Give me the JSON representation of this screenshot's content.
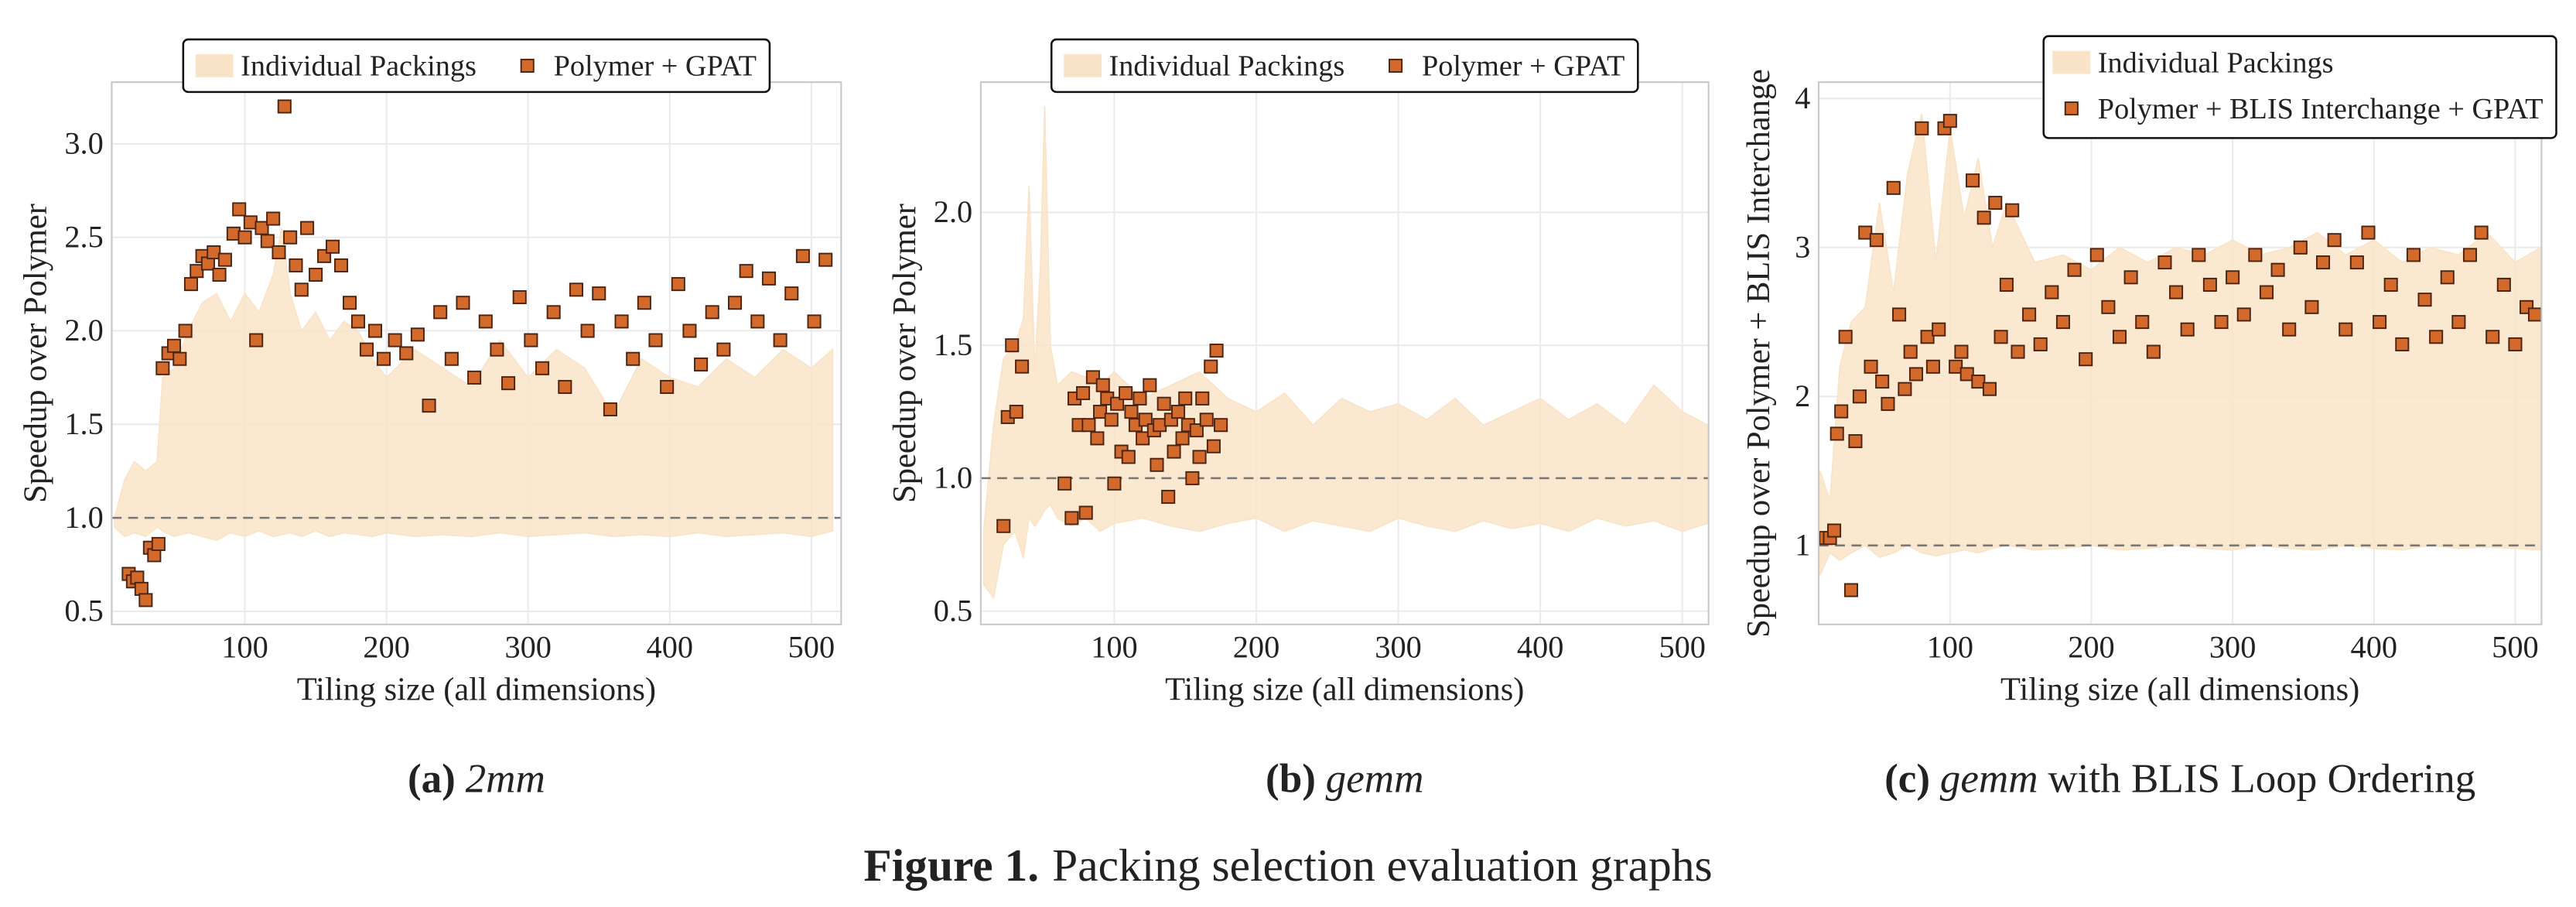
{
  "figure_caption": {
    "label": "Figure 1.",
    "text": "Packing selection evaluation graphs"
  },
  "chart_data": [
    {
      "type": "scatter",
      "caption": {
        "label": "(a)",
        "name": "2mm"
      },
      "xlabel": "Tiling size (all dimensions)",
      "ylabel": "Speedup over Polymer",
      "xlim": [
        6,
        521
      ],
      "ylim": [
        0.43,
        3.33
      ],
      "xticks": [
        100,
        200,
        300,
        400,
        500
      ],
      "yticks": [
        0.5,
        {
          "value": 1,
          "label": "1.0"
        },
        1.5,
        {
          "value": 2,
          "label": "2.0"
        },
        2.5,
        {
          "value": 3,
          "label": "3.0"
        }
      ],
      "grid": true,
      "hline": 1,
      "legend": "upper center",
      "series": [
        {
          "name": "Individual Packings",
          "type": "area",
          "color": "#f9e4c8",
          "x": [
            8,
            15,
            22,
            30,
            38,
            42,
            50,
            60,
            70,
            80,
            90,
            100,
            110,
            120,
            126,
            132,
            140,
            150,
            160,
            170,
            180,
            190,
            200,
            220,
            240,
            260,
            280,
            300,
            320,
            340,
            360,
            380,
            400,
            420,
            440,
            460,
            480,
            500,
            515
          ],
          "upper": [
            1.0,
            1.2,
            1.3,
            1.25,
            1.3,
            1.75,
            1.8,
            2.0,
            2.15,
            2.2,
            2.05,
            2.2,
            2.1,
            2.3,
            2.55,
            2.2,
            2.0,
            2.1,
            1.95,
            2.05,
            2.0,
            1.85,
            1.75,
            1.9,
            1.8,
            1.7,
            1.95,
            1.75,
            1.9,
            1.8,
            1.55,
            1.85,
            1.75,
            1.7,
            1.85,
            1.75,
            1.9,
            1.8,
            1.9
          ],
          "lower": [
            0.95,
            0.9,
            0.92,
            0.9,
            0.95,
            0.93,
            0.9,
            0.92,
            0.9,
            0.88,
            0.92,
            0.9,
            0.93,
            0.9,
            0.91,
            0.92,
            0.9,
            0.93,
            0.9,
            0.92,
            0.91,
            0.9,
            0.92,
            0.9,
            0.91,
            0.9,
            0.92,
            0.9,
            0.91,
            0.92,
            0.9,
            0.91,
            0.9,
            0.92,
            0.9,
            0.91,
            0.92,
            0.9,
            0.93
          ]
        },
        {
          "name": "Polymer + GPAT",
          "type": "scatter",
          "color": "#d4692c",
          "x": [
            18,
            21,
            24,
            27,
            30,
            33,
            36,
            39,
            42,
            46,
            50,
            54,
            58,
            62,
            66,
            70,
            74,
            78,
            82,
            86,
            92,
            96,
            100,
            104,
            108,
            112,
            116,
            120,
            124,
            128,
            132,
            136,
            140,
            144,
            150,
            156,
            162,
            168,
            174,
            180,
            186,
            192,
            198,
            206,
            214,
            222,
            230,
            238,
            246,
            254,
            262,
            270,
            278,
            286,
            294,
            302,
            310,
            318,
            326,
            334,
            342,
            350,
            358,
            366,
            374,
            382,
            390,
            398,
            406,
            414,
            422,
            430,
            438,
            446,
            454,
            462,
            470,
            478,
            486,
            494,
            502,
            510
          ],
          "values": [
            0.7,
            0.66,
            0.68,
            0.62,
            0.56,
            0.84,
            0.8,
            0.86,
            1.8,
            1.88,
            1.92,
            1.85,
            2.0,
            2.25,
            2.32,
            2.4,
            2.36,
            2.42,
            2.3,
            2.38,
            2.52,
            2.65,
            2.5,
            2.58,
            1.95,
            2.55,
            2.48,
            2.6,
            2.42,
            3.2,
            2.5,
            2.35,
            2.22,
            2.55,
            2.3,
            2.4,
            2.45,
            2.35,
            2.15,
            2.05,
            1.9,
            2.0,
            1.85,
            1.95,
            1.88,
            1.98,
            1.6,
            2.1,
            1.85,
            2.15,
            1.75,
            2.05,
            1.9,
            1.72,
            2.18,
            1.95,
            1.8,
            2.1,
            1.7,
            2.22,
            2.0,
            2.2,
            1.58,
            2.05,
            1.85,
            2.15,
            1.95,
            1.7,
            2.25,
            2.0,
            1.82,
            2.1,
            1.9,
            2.15,
            2.32,
            2.05,
            2.28,
            1.95,
            2.2,
            2.4,
            2.05,
            2.38
          ]
        }
      ]
    },
    {
      "type": "scatter",
      "caption": {
        "label": "(b)",
        "name": "gemm"
      },
      "xlabel": "Tiling size (all dimensions)",
      "ylabel": "Speedup over Polymer",
      "xlim": [
        6,
        518.5
      ],
      "ylim": [
        0.45,
        2.49
      ],
      "xticks": [
        100,
        200,
        300,
        400,
        500
      ],
      "yticks": [
        0.5,
        {
          "value": 1,
          "label": "1.0"
        },
        1.5,
        {
          "value": 2,
          "label": "2.0"
        }
      ],
      "grid": true,
      "hline": 1,
      "legend": "upper center",
      "series": [
        {
          "name": "Individual Packings",
          "type": "area",
          "color": "#f9e4c8",
          "x": [
            8,
            15,
            22,
            30,
            36,
            40,
            44,
            48,
            51,
            55,
            60,
            70,
            80,
            90,
            100,
            120,
            140,
            160,
            180,
            200,
            220,
            240,
            260,
            280,
            300,
            320,
            340,
            360,
            380,
            400,
            420,
            440,
            460,
            480,
            500,
            518
          ],
          "upper": [
            0.8,
            1.2,
            1.45,
            1.5,
            1.6,
            2.1,
            1.4,
            1.8,
            2.4,
            1.5,
            1.35,
            1.4,
            1.38,
            1.35,
            1.4,
            1.3,
            1.35,
            1.4,
            1.3,
            1.25,
            1.32,
            1.2,
            1.3,
            1.25,
            1.28,
            1.22,
            1.3,
            1.2,
            1.25,
            1.3,
            1.22,
            1.28,
            1.2,
            1.35,
            1.25,
            1.2
          ],
          "lower": [
            0.6,
            0.55,
            0.75,
            0.8,
            0.7,
            0.85,
            0.82,
            0.85,
            0.88,
            0.9,
            0.85,
            0.82,
            0.85,
            0.8,
            0.83,
            0.85,
            0.82,
            0.8,
            0.83,
            0.85,
            0.8,
            0.84,
            0.82,
            0.8,
            0.85,
            0.82,
            0.8,
            0.84,
            0.81,
            0.83,
            0.8,
            0.85,
            0.82,
            0.84,
            0.8,
            0.83
          ]
        },
        {
          "name": "Polymer + GPAT",
          "type": "scatter",
          "color": "#d4692c",
          "x": [
            22,
            25,
            28,
            31,
            35,
            65,
            70,
            72,
            75,
            78,
            80,
            82,
            85,
            88,
            90,
            92,
            95,
            98,
            100,
            102,
            105,
            108,
            110,
            112,
            115,
            118,
            120,
            122,
            125,
            128,
            130,
            132,
            135,
            138,
            140,
            142,
            145,
            148,
            150,
            152,
            155,
            158,
            160,
            162,
            165,
            168,
            170,
            172,
            175
          ],
          "values": [
            0.82,
            1.23,
            1.5,
            1.25,
            1.42,
            0.98,
            0.85,
            1.3,
            1.2,
            1.32,
            0.87,
            1.2,
            1.38,
            1.15,
            1.25,
            1.35,
            1.3,
            1.22,
            0.98,
            1.28,
            1.1,
            1.32,
            1.08,
            1.25,
            1.2,
            1.3,
            1.15,
            1.22,
            1.35,
            1.18,
            1.05,
            1.2,
            1.28,
            0.93,
            1.22,
            1.1,
            1.25,
            1.15,
            1.3,
            1.2,
            1.0,
            1.18,
            1.08,
            1.3,
            1.22,
            1.42,
            1.12,
            1.48,
            1.2
          ]
        }
      ]
    },
    {
      "type": "scatter",
      "caption": {
        "label": "(c)",
        "name": "gemm",
        "suffix": "with BLIS Loop Ordering"
      },
      "xlabel": "Tiling size (all dimensions)",
      "ylabel": "Speedup over Polymer + BLIS Interchange",
      "xlim": [
        7,
        518.6
      ],
      "ylim": [
        0.47,
        4.11
      ],
      "xticks": [
        100,
        200,
        300,
        400,
        500
      ],
      "yticks": [
        1,
        2,
        3,
        4
      ],
      "grid": true,
      "hline": 1,
      "legend": "upper right",
      "series": [
        {
          "name": "Individual Packings",
          "type": "area",
          "color": "#f9e4c8",
          "x": [
            8,
            15,
            22,
            30,
            40,
            50,
            60,
            70,
            80,
            90,
            100,
            110,
            120,
            130,
            140,
            160,
            180,
            200,
            220,
            240,
            260,
            280,
            300,
            320,
            340,
            360,
            380,
            400,
            420,
            440,
            460,
            480,
            500,
            518
          ],
          "upper": [
            1.5,
            1.3,
            2.2,
            2.5,
            2.6,
            3.3,
            2.7,
            3.5,
            3.9,
            2.9,
            3.8,
            3.2,
            3.6,
            3.0,
            3.3,
            2.9,
            2.95,
            2.85,
            3.0,
            2.9,
            3.0,
            2.95,
            3.05,
            2.95,
            3.0,
            3.1,
            2.95,
            3.05,
            2.9,
            3.0,
            2.95,
            3.1,
            2.9,
            3.0
          ],
          "lower": [
            0.8,
            0.95,
            0.9,
            0.95,
            1.0,
            0.92,
            0.95,
            1.0,
            0.95,
            0.93,
            0.95,
            0.97,
            0.95,
            0.98,
            1.0,
            0.97,
            0.98,
            1.0,
            0.97,
            0.98,
            1.0,
            0.98,
            0.97,
            1.0,
            0.98,
            0.97,
            1.0,
            0.98,
            0.97,
            1.0,
            0.98,
            0.99,
            0.98,
            0.97
          ]
        },
        {
          "name": "Polymer + BLIS Interchange + GPAT",
          "type": "scatter",
          "color": "#d4692c",
          "x": [
            12,
            15,
            18,
            20,
            23,
            26,
            30,
            33,
            36,
            40,
            44,
            48,
            52,
            56,
            60,
            64,
            68,
            72,
            76,
            80,
            84,
            88,
            92,
            96,
            100,
            104,
            108,
            112,
            116,
            120,
            124,
            128,
            132,
            136,
            140,
            144,
            148,
            156,
            164,
            172,
            180,
            188,
            196,
            204,
            212,
            220,
            228,
            236,
            244,
            252,
            260,
            268,
            276,
            284,
            292,
            300,
            308,
            316,
            324,
            332,
            340,
            348,
            356,
            364,
            372,
            380,
            388,
            396,
            404,
            412,
            420,
            428,
            436,
            444,
            452,
            460,
            468,
            476,
            484,
            492,
            500,
            508,
            514
          ],
          "values": [
            1.05,
            1.05,
            1.1,
            1.75,
            1.9,
            2.4,
            0.7,
            1.7,
            2.0,
            3.1,
            2.2,
            3.05,
            2.1,
            1.95,
            3.4,
            2.55,
            2.05,
            2.3,
            2.15,
            3.8,
            2.4,
            2.2,
            2.45,
            3.8,
            3.85,
            2.2,
            2.3,
            2.15,
            3.45,
            2.1,
            3.2,
            2.05,
            3.3,
            2.4,
            2.75,
            3.25,
            2.3,
            2.55,
            2.35,
            2.7,
            2.5,
            2.85,
            2.25,
            2.95,
            2.6,
            2.4,
            2.8,
            2.5,
            2.3,
            2.9,
            2.7,
            2.45,
            2.95,
            2.75,
            2.5,
            2.8,
            2.55,
            2.95,
            2.7,
            2.85,
            2.45,
            3.0,
            2.6,
            2.9,
            3.05,
            2.45,
            2.9,
            3.1,
            2.5,
            2.75,
            2.35,
            2.95,
            2.65,
            2.4,
            2.8,
            2.5,
            2.95,
            3.1,
            2.4,
            2.75,
            2.35,
            2.6,
            2.55
          ]
        }
      ]
    }
  ]
}
